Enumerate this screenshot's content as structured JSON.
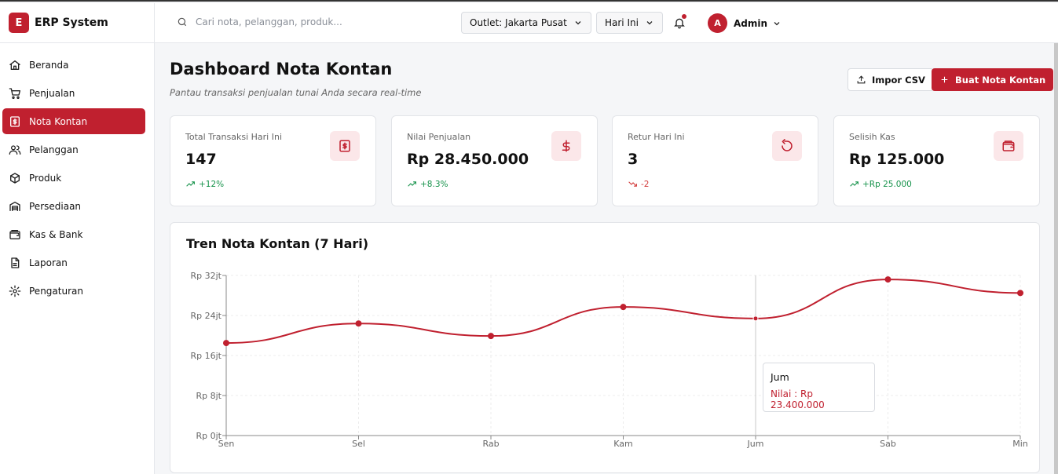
{
  "app": {
    "logo_letter": "E",
    "name": "ERP System"
  },
  "sidebar": {
    "items": [
      {
        "label": "Beranda",
        "icon": "home-icon",
        "active": false
      },
      {
        "label": "Penjualan",
        "icon": "cart-icon",
        "active": false
      },
      {
        "label": "Nota Kontan",
        "icon": "receipt-icon",
        "active": true
      },
      {
        "label": "Pelanggan",
        "icon": "users-icon",
        "active": false
      },
      {
        "label": "Produk",
        "icon": "box-icon",
        "active": false
      },
      {
        "label": "Persediaan",
        "icon": "warehouse-icon",
        "active": false
      },
      {
        "label": "Kas & Bank",
        "icon": "wallet-icon",
        "active": false
      },
      {
        "label": "Laporan",
        "icon": "file-icon",
        "active": false
      },
      {
        "label": "Pengaturan",
        "icon": "gear-icon",
        "active": false
      }
    ]
  },
  "topbar": {
    "search_placeholder": "Cari nota, pelanggan, produk...",
    "outlet": "Outlet: Jakarta Pusat",
    "period": "Hari Ini",
    "user_initial": "A",
    "user_name": "Admin"
  },
  "page": {
    "title": "Dashboard Nota Kontan",
    "subtitle": "Pantau transaksi penjualan tunai Anda secara real-time",
    "import_label": "Impor CSV",
    "create_label": "Buat Nota Kontan"
  },
  "stats": [
    {
      "label": "Total Transaksi Hari Ini",
      "value": "147",
      "delta": "+12%",
      "trend": "up",
      "icon": "receipt-icon"
    },
    {
      "label": "Nilai Penjualan",
      "value": "Rp 28.450.000",
      "delta": "+8.3%",
      "trend": "up",
      "icon": "dollar-icon"
    },
    {
      "label": "Retur Hari Ini",
      "value": "3",
      "delta": "-2",
      "trend": "down",
      "icon": "refresh-icon"
    },
    {
      "label": "Selisih Kas",
      "value": "Rp 125.000",
      "delta": "+Rp 25.000",
      "trend": "up",
      "icon": "wallet-icon"
    }
  ],
  "colors": {
    "accent": "#c0202f",
    "accent_soft": "#fbe7e9",
    "up": "#15924a",
    "down": "#d23a3a"
  },
  "chart_data": {
    "type": "line",
    "title": "Tren Nota Kontan (7 Hari)",
    "categories": [
      "Sen",
      "Sel",
      "Rab",
      "Kam",
      "Jum",
      "Sab",
      "Min"
    ],
    "series": [
      {
        "name": "Nilai",
        "values": [
          18500000,
          22400000,
          19900000,
          25700000,
          23400000,
          31200000,
          28500000
        ]
      }
    ],
    "y_ticks": [
      "Rp 0jt",
      "Rp 8jt",
      "Rp 16jt",
      "Rp 24jt",
      "Rp 32jt"
    ],
    "ylim": [
      0,
      32000000
    ],
    "grid": true,
    "tooltip": {
      "category": "Jum",
      "label": "Nilai : Rp 23.400.000"
    }
  }
}
